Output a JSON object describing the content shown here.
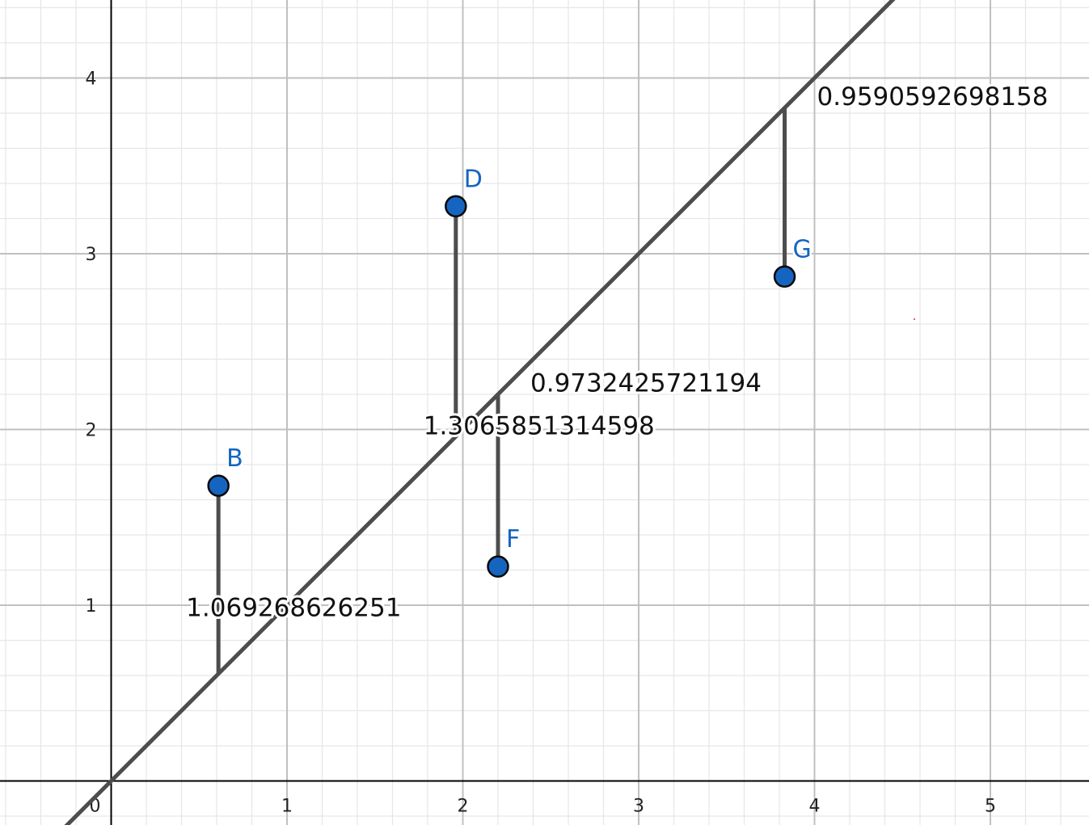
{
  "axes": {
    "x_ticks": [
      {
        "value": 1,
        "label": "1"
      },
      {
        "value": 2,
        "label": "2"
      },
      {
        "value": 3,
        "label": "3"
      },
      {
        "value": 4,
        "label": "4"
      },
      {
        "value": 5,
        "label": "5"
      }
    ],
    "y_ticks": [
      {
        "value": 1,
        "label": "1"
      },
      {
        "value": 2,
        "label": "2"
      },
      {
        "value": 3,
        "label": "3"
      },
      {
        "value": 4,
        "label": "4"
      }
    ],
    "origin_label": "0",
    "minor_step": 0.2,
    "major_step": 1,
    "grid": true
  },
  "line": {
    "slope": 1,
    "intercept": 0,
    "color": "#4d4d4d"
  },
  "points": [
    {
      "name": "B",
      "x": 0.61,
      "y": 1.68,
      "line_y": 0.61,
      "label": "B",
      "distance": "1.069268626251"
    },
    {
      "name": "D",
      "x": 1.96,
      "y": 3.27,
      "line_y": 1.96,
      "label": "D",
      "distance": "1.3065851314598"
    },
    {
      "name": "F",
      "x": 2.2,
      "y": 1.22,
      "line_y": 2.2,
      "label": "F",
      "distance": "0.9732425721194"
    },
    {
      "name": "G",
      "x": 3.83,
      "y": 2.87,
      "line_y": 3.83,
      "label": "G",
      "distance": "0.9590592698158"
    }
  ],
  "colors": {
    "point_fill": "#1565c0",
    "point_stroke": "#0a0a0a",
    "point_label": "#1565c0",
    "segment": "#4d4d4d",
    "axis": "#000000",
    "major_grid": "#c0c0c0",
    "minor_grid": "#e6e6e6"
  }
}
